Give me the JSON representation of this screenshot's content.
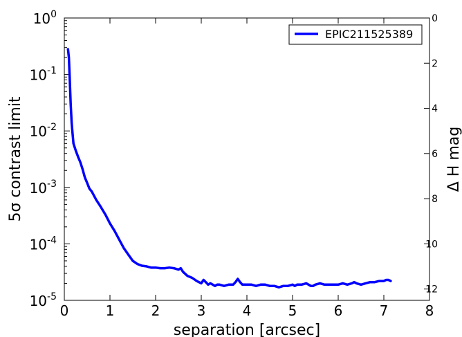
{
  "chart_data": {
    "type": "line",
    "title": "",
    "xlabel": "separation [arcsec]",
    "ylabel": "5σ contrast limit",
    "y2label": "Δ H mag",
    "xlim": [
      0,
      8
    ],
    "ylim": [
      1e-05,
      1
    ],
    "yscale": "log",
    "y2lim": [
      0,
      12.5
    ],
    "y2_inverted": true,
    "grid": false,
    "legend_position": "top-right",
    "x_ticks": [
      "0",
      "1",
      "2",
      "3",
      "4",
      "5",
      "6",
      "7",
      "8"
    ],
    "y_ticks": [
      {
        "base": "10",
        "exp": "0"
      },
      {
        "base": "10",
        "exp": "-1"
      },
      {
        "base": "10",
        "exp": "-2"
      },
      {
        "base": "10",
        "exp": "-3"
      },
      {
        "base": "10",
        "exp": "-4"
      },
      {
        "base": "10",
        "exp": "-5"
      }
    ],
    "y2_ticks": [
      "0",
      "2",
      "4",
      "6",
      "8",
      "10",
      "12"
    ],
    "series": [
      {
        "name": "EPIC211525389",
        "color": "#0000ff",
        "x": [
          0.08,
          0.1,
          0.12,
          0.14,
          0.16,
          0.18,
          0.2,
          0.25,
          0.3,
          0.35,
          0.4,
          0.45,
          0.5,
          0.55,
          0.6,
          0.7,
          0.8,
          0.9,
          1.0,
          1.1,
          1.2,
          1.3,
          1.4,
          1.5,
          1.55,
          1.6,
          1.7,
          1.8,
          1.9,
          2.0,
          2.1,
          2.2,
          2.3,
          2.4,
          2.45,
          2.5,
          2.55,
          2.6,
          2.7,
          2.8,
          2.9,
          3.0,
          3.05,
          3.1,
          3.15,
          3.2,
          3.3,
          3.35,
          3.4,
          3.5,
          3.6,
          3.7,
          3.75,
          3.8,
          3.85,
          3.9,
          4.0,
          4.1,
          4.2,
          4.3,
          4.4,
          4.5,
          4.6,
          4.7,
          4.8,
          4.9,
          5.0,
          5.05,
          5.1,
          5.2,
          5.3,
          5.4,
          5.45,
          5.5,
          5.6,
          5.7,
          5.8,
          5.9,
          6.0,
          6.1,
          6.2,
          6.3,
          6.35,
          6.4,
          6.5,
          6.6,
          6.7,
          6.8,
          6.9,
          7.0,
          7.05,
          7.1,
          7.15
        ],
        "y": [
          0.28,
          0.2,
          0.08,
          0.03,
          0.014,
          0.009,
          0.006,
          0.0045,
          0.0035,
          0.0028,
          0.0021,
          0.0015,
          0.0012,
          0.00095,
          0.00085,
          0.0006,
          0.00045,
          0.00033,
          0.00023,
          0.00017,
          0.00012,
          8.5e-05,
          6.5e-05,
          5e-05,
          4.7e-05,
          4.4e-05,
          4.1e-05,
          4e-05,
          3.8e-05,
          3.8e-05,
          3.7e-05,
          3.7e-05,
          3.8e-05,
          3.7e-05,
          3.6e-05,
          3.5e-05,
          3.7e-05,
          3.2e-05,
          2.7e-05,
          2.5e-05,
          2.2e-05,
          2e-05,
          2.3e-05,
          2.1e-05,
          1.9e-05,
          2e-05,
          1.8e-05,
          1.9e-05,
          1.9e-05,
          1.8e-05,
          1.9e-05,
          1.9e-05,
          2.1e-05,
          2.4e-05,
          2.1e-05,
          1.9e-05,
          1.9e-05,
          1.9e-05,
          1.8e-05,
          1.9e-05,
          1.9e-05,
          1.8e-05,
          1.8e-05,
          1.7e-05,
          1.8e-05,
          1.8e-05,
          1.9e-05,
          1.8e-05,
          1.9e-05,
          1.9e-05,
          2e-05,
          1.8e-05,
          1.8e-05,
          1.9e-05,
          2e-05,
          1.9e-05,
          1.9e-05,
          1.9e-05,
          1.9e-05,
          2e-05,
          1.9e-05,
          2e-05,
          2.1e-05,
          2e-05,
          1.9e-05,
          2e-05,
          2.1e-05,
          2.1e-05,
          2.2e-05,
          2.2e-05,
          2.3e-05,
          2.3e-05,
          2.2e-05
        ]
      }
    ]
  }
}
